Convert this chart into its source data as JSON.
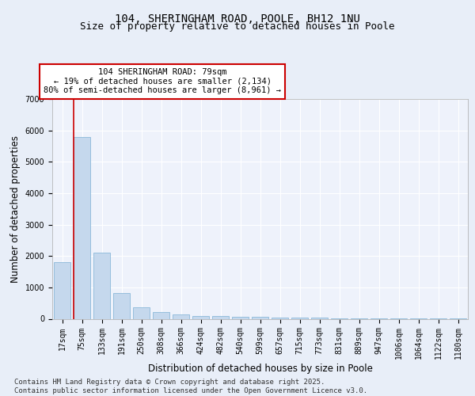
{
  "title1": "104, SHERINGHAM ROAD, POOLE, BH12 1NU",
  "title2": "Size of property relative to detached houses in Poole",
  "xlabel": "Distribution of detached houses by size in Poole",
  "ylabel": "Number of detached properties",
  "categories": [
    "17sqm",
    "75sqm",
    "133sqm",
    "191sqm",
    "250sqm",
    "308sqm",
    "366sqm",
    "424sqm",
    "482sqm",
    "540sqm",
    "599sqm",
    "657sqm",
    "715sqm",
    "773sqm",
    "831sqm",
    "889sqm",
    "947sqm",
    "1006sqm",
    "1064sqm",
    "1122sqm",
    "1180sqm"
  ],
  "values": [
    1800,
    5800,
    2100,
    820,
    370,
    210,
    130,
    100,
    90,
    70,
    55,
    45,
    45,
    28,
    18,
    12,
    8,
    6,
    4,
    3,
    2
  ],
  "bar_color": "#c5d8ed",
  "bar_edge_color": "#7bafd4",
  "red_line_index": 1,
  "annotation_text": "104 SHERINGHAM ROAD: 79sqm\n← 19% of detached houses are smaller (2,134)\n80% of semi-detached houses are larger (8,961) →",
  "annotation_box_color": "#ffffff",
  "annotation_box_edge": "#cc0000",
  "ylim": [
    0,
    7000
  ],
  "yticks": [
    0,
    1000,
    2000,
    3000,
    4000,
    5000,
    6000,
    7000
  ],
  "bg_color": "#e8eef8",
  "plot_bg_color": "#eef2fb",
  "grid_color": "#ffffff",
  "footer_text": "Contains HM Land Registry data © Crown copyright and database right 2025.\nContains public sector information licensed under the Open Government Licence v3.0.",
  "title_fontsize": 10,
  "subtitle_fontsize": 9,
  "tick_fontsize": 7,
  "ylabel_fontsize": 8.5,
  "xlabel_fontsize": 8.5,
  "annotation_fontsize": 7.5,
  "footer_fontsize": 6.5
}
